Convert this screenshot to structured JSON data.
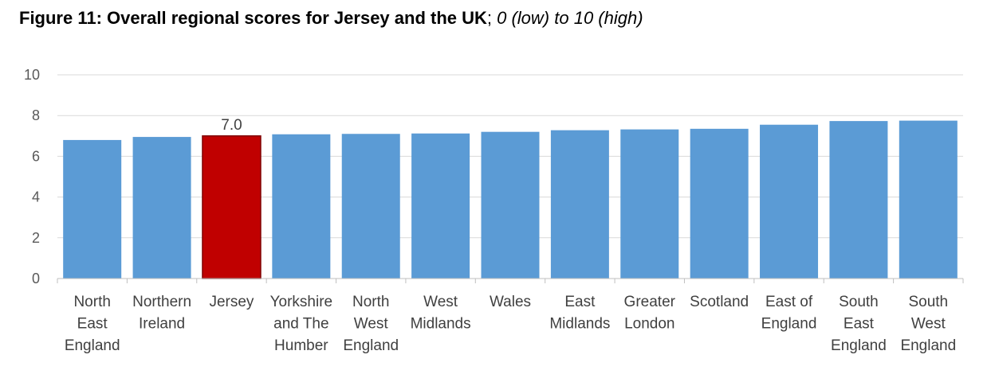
{
  "title": {
    "bold": "Figure 11: Overall regional scores for Jersey and the UK",
    "separator": "; ",
    "italic": "0 (low) to 10 (high)"
  },
  "chart_data": {
    "type": "bar",
    "categories": [
      [
        "North",
        "East",
        "England"
      ],
      [
        "Northern",
        "Ireland"
      ],
      [
        "Jersey"
      ],
      [
        "Yorkshire",
        "and The",
        "Humber"
      ],
      [
        "North",
        "West",
        "England"
      ],
      [
        "West",
        "Midlands"
      ],
      [
        "Wales"
      ],
      [
        "East",
        "Midlands"
      ],
      [
        "Greater",
        "London"
      ],
      [
        "Scotland"
      ],
      [
        "East of",
        "England"
      ],
      [
        "South",
        "East",
        "England"
      ],
      [
        "South",
        "West",
        "England"
      ]
    ],
    "values": [
      6.8,
      6.95,
      7.0,
      7.08,
      7.1,
      7.12,
      7.2,
      7.28,
      7.32,
      7.35,
      7.55,
      7.73,
      7.75
    ],
    "highlight_index": 2,
    "data_labels": {
      "2": "7.0"
    },
    "ylim": [
      0,
      10
    ],
    "yticks": [
      0,
      2,
      4,
      6,
      8,
      10
    ],
    "grid": true,
    "colors": {
      "bar": "#5b9bd5",
      "highlight": "#c00000",
      "highlight_border": "#7f0000",
      "grid": "#d9d9d9"
    }
  }
}
